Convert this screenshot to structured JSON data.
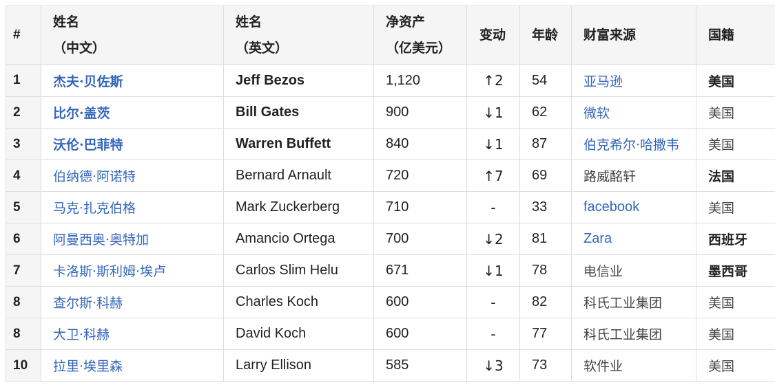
{
  "headers": {
    "rank": "#",
    "name_cn_line1": "姓名",
    "name_cn_line2": "（中文）",
    "name_en_line1": "姓名",
    "name_en_line2": "（英文）",
    "worth_line1": "净资产",
    "worth_line2": "（亿美元）",
    "change": "变动",
    "age": "年龄",
    "source": "财富来源",
    "country": "国籍"
  },
  "rows": [
    {
      "rank": "1",
      "name_cn": "杰夫·贝佐斯",
      "name_en": "Jeff Bezos",
      "worth": "1,120",
      "change": "↑2",
      "age": "54",
      "source": "亚马逊",
      "country": "美国"
    },
    {
      "rank": "2",
      "name_cn": "比尔·盖茨",
      "name_en": "Bill Gates",
      "worth": "900",
      "change": "↓1",
      "age": "62",
      "source": "微软",
      "country": "美国"
    },
    {
      "rank": "3",
      "name_cn": "沃伦·巴菲特",
      "name_en": "Warren Buffett",
      "worth": "840",
      "change": "↓1",
      "age": "87",
      "source": "伯克希尔·哈撒韦",
      "country": "美国"
    },
    {
      "rank": "4",
      "name_cn": "伯纳德·阿诺特",
      "name_en": "Bernard Arnault",
      "worth": "720",
      "change": "↑7",
      "age": "69",
      "source": "路威酩轩",
      "country": "法国"
    },
    {
      "rank": "5",
      "name_cn": "马克·扎克伯格",
      "name_en": "Mark Zuckerberg",
      "worth": "710",
      "change": "-",
      "age": "33",
      "source": "facebook",
      "country": "美国"
    },
    {
      "rank": "6",
      "name_cn": "阿曼西奥·奥特加",
      "name_en": "Amancio Ortega",
      "worth": "700",
      "change": "↓2",
      "age": "81",
      "source": "Zara",
      "country": "西班牙"
    },
    {
      "rank": "7",
      "name_cn": "卡洛斯·斯利姆·埃卢",
      "name_en": "Carlos Slim Helu",
      "worth": "671",
      "change": "↓1",
      "age": "78",
      "source": "电信业",
      "country": "墨西哥"
    },
    {
      "rank": "8",
      "name_cn": "查尔斯·科赫",
      "name_en": "Charles Koch",
      "worth": "600",
      "change": "-",
      "age": "82",
      "source": "科氏工业集团",
      "country": "美国"
    },
    {
      "rank": "8",
      "name_cn": "大卫·科赫",
      "name_en": "David Koch",
      "worth": "600",
      "change": "-",
      "age": "77",
      "source": "科氏工业集团",
      "country": "美国"
    },
    {
      "rank": "10",
      "name_cn": "拉里·埃里森",
      "name_en": "Larry Ellison",
      "worth": "585",
      "change": "↓3",
      "age": "73",
      "source": "软件业",
      "country": "美国"
    }
  ],
  "colors": {
    "link": "#3366bb",
    "header_bg": "#f5f5f5",
    "border": "#dddddd"
  }
}
